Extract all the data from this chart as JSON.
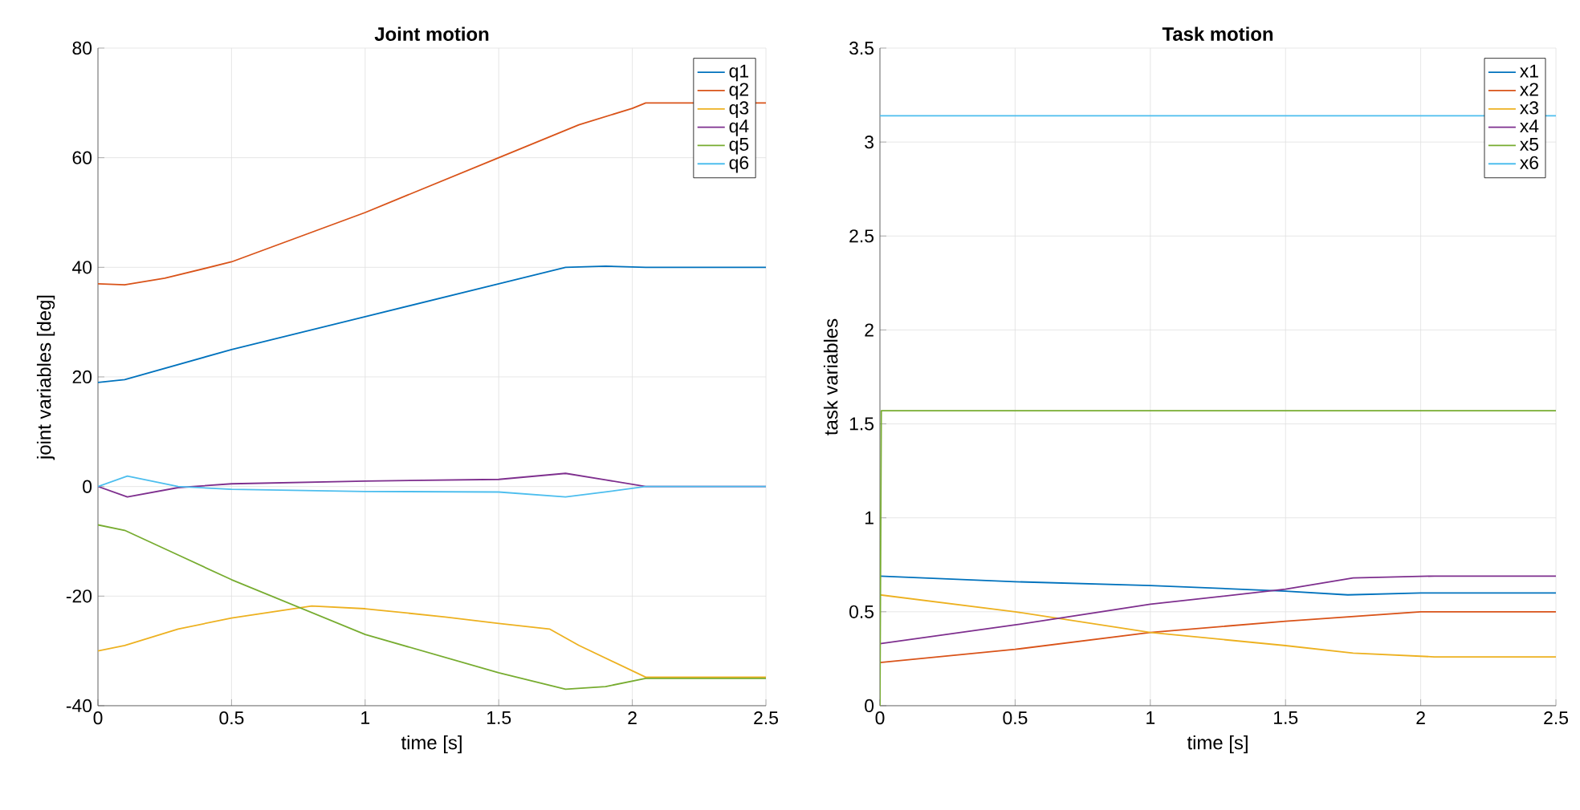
{
  "chart_data": [
    {
      "type": "line",
      "title": "Joint motion",
      "xlabel": "time [s]",
      "ylabel": "joint variables [deg]",
      "xlim": [
        0,
        2.5
      ],
      "ylim": [
        -40,
        80
      ],
      "xticks": [
        0,
        0.5,
        1,
        1.5,
        2,
        2.5
      ],
      "yticks": [
        -40,
        -20,
        0,
        20,
        40,
        60,
        80
      ],
      "grid": true,
      "legend": "top right",
      "series": [
        {
          "name": "q1",
          "color": "#0072bd",
          "x": [
            0,
            0.1,
            0.5,
            1,
            1.5,
            1.75,
            1.9,
            2.05,
            2.5
          ],
          "values": [
            19,
            19.5,
            25,
            31,
            37,
            40,
            40.2,
            40,
            40
          ]
        },
        {
          "name": "q2",
          "color": "#d95319",
          "x": [
            0,
            0.1,
            0.25,
            0.5,
            1,
            1.5,
            1.8,
            2,
            2.05,
            2.5
          ],
          "values": [
            37,
            36.8,
            38,
            41,
            50,
            60,
            66,
            69,
            70,
            70
          ]
        },
        {
          "name": "q3",
          "color": "#edb120",
          "x": [
            0,
            0.1,
            0.3,
            0.5,
            0.8,
            1,
            1.3,
            1.5,
            1.69,
            1.8,
            2.05,
            2.5
          ],
          "values": [
            -30,
            -29,
            -26,
            -24,
            -21.8,
            -22.3,
            -23.8,
            -25,
            -26,
            -29,
            -34.8,
            -34.8
          ]
        },
        {
          "name": "q4",
          "color": "#7e2f8e",
          "x": [
            0,
            0.11,
            0.3,
            0.5,
            1,
            1.5,
            1.75,
            1.9,
            2.05,
            2.5
          ],
          "values": [
            0,
            -1.9,
            -0.2,
            0.5,
            1,
            1.3,
            2.4,
            1.2,
            0,
            0
          ]
        },
        {
          "name": "q5",
          "color": "#77ac30",
          "x": [
            0,
            0.1,
            0.3,
            0.5,
            1,
            1.5,
            1.75,
            1.9,
            2.05,
            2.5
          ],
          "values": [
            -7,
            -8,
            -12.5,
            -17,
            -27,
            -34,
            -37,
            -36.5,
            -35,
            -35
          ]
        },
        {
          "name": "q6",
          "color": "#4dbeee",
          "x": [
            0,
            0.11,
            0.3,
            0.5,
            1,
            1.5,
            1.75,
            1.9,
            2.05,
            2.5
          ],
          "values": [
            0,
            1.9,
            0,
            -0.5,
            -0.9,
            -1,
            -1.9,
            -1,
            0,
            0
          ]
        }
      ]
    },
    {
      "type": "line",
      "title": "Task motion",
      "xlabel": "time [s]",
      "ylabel": "task variables",
      "xlim": [
        0,
        2.5
      ],
      "ylim": [
        0,
        3.5
      ],
      "xticks": [
        0,
        0.5,
        1,
        1.5,
        2,
        2.5
      ],
      "yticks": [
        0,
        0.5,
        1,
        1.5,
        2,
        2.5,
        3,
        3.5
      ],
      "grid": true,
      "legend": "top right",
      "series": [
        {
          "name": "x1",
          "color": "#0072bd",
          "x": [
            0,
            0.5,
            1,
            1.5,
            1.73,
            2,
            2.5
          ],
          "values": [
            0.69,
            0.66,
            0.64,
            0.61,
            0.59,
            0.6,
            0.6
          ]
        },
        {
          "name": "x2",
          "color": "#d95319",
          "x": [
            0,
            0.5,
            1,
            1.5,
            2,
            2.5
          ],
          "values": [
            0.23,
            0.3,
            0.39,
            0.45,
            0.5,
            0.5
          ]
        },
        {
          "name": "x3",
          "color": "#edb120",
          "x": [
            0,
            0.5,
            1,
            1.5,
            1.75,
            2.05,
            2.5
          ],
          "values": [
            0.59,
            0.5,
            0.39,
            0.32,
            0.28,
            0.26,
            0.26
          ]
        },
        {
          "name": "x4",
          "color": "#7e2f8e",
          "x": [
            0,
            0.5,
            1,
            1.5,
            1.75,
            2.05,
            2.5
          ],
          "values": [
            0.33,
            0.43,
            0.54,
            0.62,
            0.68,
            0.69,
            0.69
          ]
        },
        {
          "name": "x5",
          "color": "#77ac30",
          "x": [
            0,
            0.005,
            2.5
          ],
          "values": [
            0,
            1.57,
            1.57
          ]
        },
        {
          "name": "x6",
          "color": "#4dbeee",
          "x": [
            0,
            2.5
          ],
          "values": [
            3.14,
            3.14
          ]
        }
      ]
    }
  ]
}
